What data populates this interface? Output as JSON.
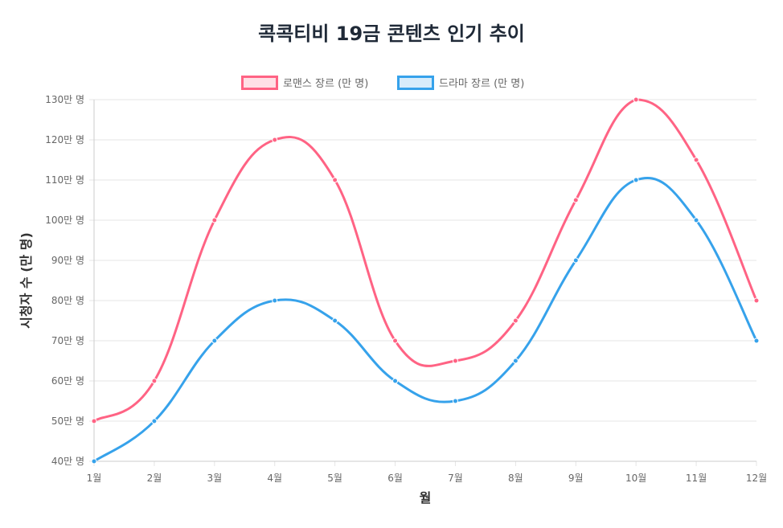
{
  "chart_data": {
    "type": "line",
    "title": "콕콕티비 19금 콘텐츠 인기 추이",
    "xlabel": "월",
    "ylabel": "시청자 수 (만 명)",
    "categories": [
      "1월",
      "2월",
      "3월",
      "4월",
      "5월",
      "6월",
      "7월",
      "8월",
      "9월",
      "10월",
      "11월",
      "12월"
    ],
    "ylim": [
      40,
      130
    ],
    "yticks": [
      40,
      50,
      60,
      70,
      80,
      90,
      100,
      110,
      120,
      130
    ],
    "ytick_suffix": "만 명",
    "grid": true,
    "legend_position": "top",
    "series": [
      {
        "name": "로맨스 장르 (만 명)",
        "color": "#ff6384",
        "fill": "#ffe0e6",
        "values": [
          50,
          60,
          100,
          120,
          110,
          70,
          65,
          75,
          105,
          130,
          115,
          80
        ]
      },
      {
        "name": "드라마 장르 (만 명)",
        "color": "#36a2eb",
        "fill": "#d7ecfb",
        "values": [
          40,
          50,
          70,
          80,
          75,
          60,
          55,
          65,
          90,
          110,
          100,
          70
        ]
      }
    ]
  }
}
